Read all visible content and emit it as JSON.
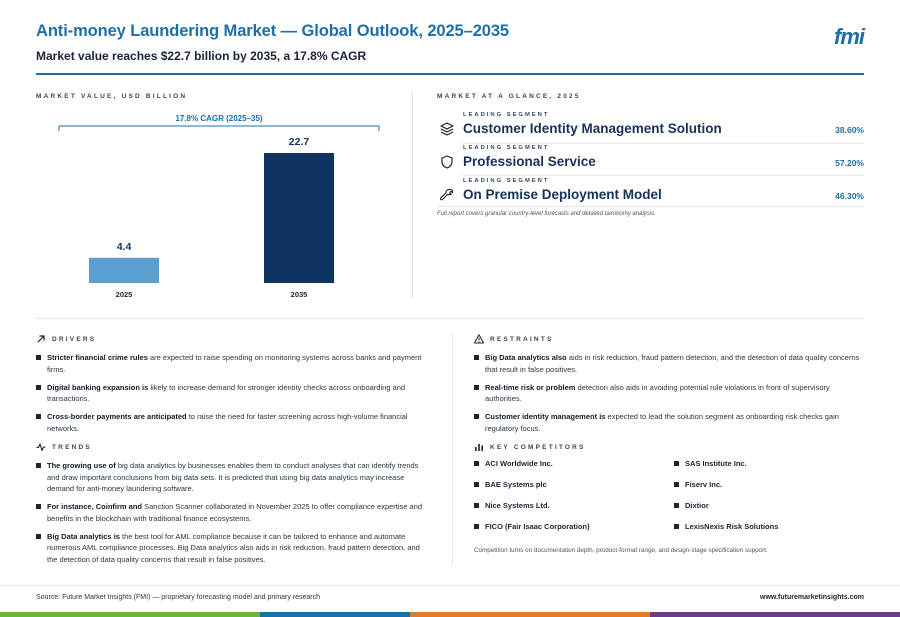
{
  "header": {
    "title": "Anti-money Laundering Market — Global Outlook, 2025–2035",
    "subtitle": "Market value reaches $22.7 billion by 2035, a 17.8% CAGR",
    "logo": "fmi"
  },
  "chart_section": {
    "label": "MARKET VALUE, USD BILLION"
  },
  "chart_data": {
    "type": "bar",
    "categories": [
      "2025",
      "2035"
    ],
    "values": [
      4.4,
      22.7
    ],
    "value_labels": [
      "4.4",
      "22.7"
    ],
    "annotation": "17.8% CAGR (2025–35)",
    "colors": [
      "#5a9fcf",
      "#0f3461"
    ],
    "ylabel": "",
    "xlabel": ""
  },
  "glance": {
    "label": "MARKET AT A GLANCE, 2025",
    "rows": [
      {
        "tag": "LEADING SEGMENT",
        "name": "Customer Identity Management Solution",
        "pct": "38.60%",
        "icon": "layers-icon"
      },
      {
        "tag": "LEADING SEGMENT",
        "name": "Professional Service",
        "pct": "57.20%",
        "icon": "shield-icon"
      },
      {
        "tag": "LEADING SEGMENT",
        "name": "On Premise Deployment Model",
        "pct": "46.30%",
        "icon": "wrench-icon"
      }
    ],
    "note": "Full report covers granular country-level forecasts and detailed taxonomy analysis."
  },
  "drivers": {
    "label": "DRIVERS",
    "items": [
      {
        "bold": "Stricter financial crime rules",
        "rest": " are expected to raise spending on monitoring systems across banks and payment firms."
      },
      {
        "bold": "Digital banking expansion is",
        "rest": " likely to increase demand for stronger identity checks across onboarding and transactions."
      },
      {
        "bold": "Cross-border payments are anticipated",
        "rest": " to raise the need for faster screening across high-volume financial networks."
      }
    ]
  },
  "trends": {
    "label": "TRENDS",
    "items": [
      {
        "bold": "The growing use of",
        "rest": " big data analytics by businesses enables them to conduct analyses that can identify trends and draw important conclusions from big data sets. It is predicted that using big data analytics may increase demand for anti-money laundering software."
      },
      {
        "bold": "For instance, Coinfirm and",
        "rest": " Sanction Scanner collaborated in November 2025 to offer compliance expertise and benefits in the blockchain with traditional finance ecosystems."
      },
      {
        "bold": "Big Data analytics is",
        "rest": " the best tool for AML compliance because it can be tailored to enhance and automate numerous AML compliance processes. Big Data analytics also aids in risk reduction, fraud pattern detection, and the detection of data quality concerns that result in false positives."
      }
    ]
  },
  "restraints": {
    "label": "RESTRAINTS",
    "items": [
      {
        "bold": "Big Data analytics also",
        "rest": " aids in risk reduction, fraud pattern detection, and the detection of data quality concerns that result in false positives."
      },
      {
        "bold": "Real-time risk or problem",
        "rest": " detection also aids in avoiding potential rule violations in front of supervisory authorities."
      },
      {
        "bold": "Customer identity management is",
        "rest": " expected to lead the solution segment as onboarding risk checks gain regulatory focus."
      }
    ]
  },
  "competitors": {
    "label": "KEY COMPETITORS",
    "items": [
      "ACI Worldwide Inc.",
      "SAS Institute Inc.",
      "BAE Systems plc",
      "Fiserv Inc.",
      "Nice Systems Ltd.",
      "Dixtior",
      "FICO (Fair Isaac Corporation)",
      "LexisNexis Risk Solutions"
    ],
    "note": "Competition turns on documentation depth, product-format range, and design-stage specification support."
  },
  "footer": {
    "source": "Source: Future Market Insights (FMI) — proprietary forecasting model and primary research",
    "url": "www.futuremarketinsights.com",
    "strip_colors": [
      "#6cb33f",
      "#1c6fa8",
      "#e07a2e",
      "#6b3a8e"
    ]
  }
}
